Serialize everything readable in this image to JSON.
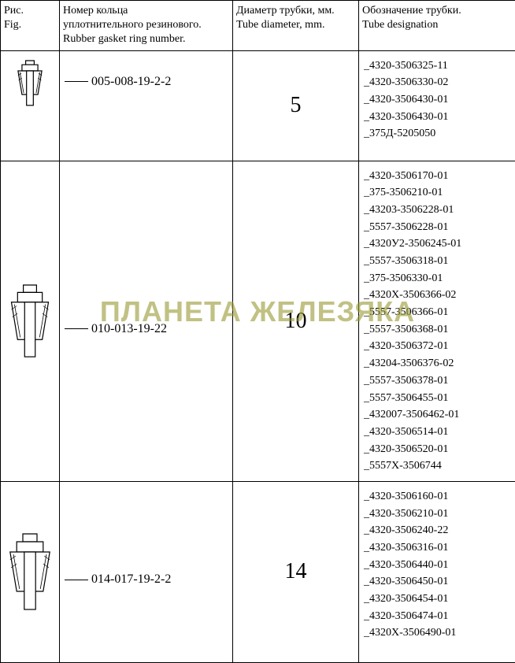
{
  "watermark": "ПЛАНЕТА ЖЕЛЕЗЯКА",
  "headers": {
    "fig": "Рис.\nFig.",
    "ring": "Номер кольца\nуплотнительного резинового.\nRubber gasket ring number.",
    "diam": "Диаметр трубки, мм.\nTube diameter, mm.",
    "desig": "Обозначение трубки.\nTube designation"
  },
  "rows": [
    {
      "ring_number": "005-008-19-2-2",
      "diameter": "5",
      "fig_size": "small",
      "designations": [
        "4320-3506325-11",
        "4320-3506330-02",
        "4320-3506430-01",
        "4320-3506430-01",
        "375Д-5205050"
      ]
    },
    {
      "ring_number": "010-013-19-22",
      "diameter": "10",
      "fig_size": "medium",
      "designations": [
        "4320-3506170-01",
        "375-3506210-01",
        "43203-3506228-01",
        "5557-3506228-01",
        "4320У2-3506245-01",
        "5557-3506318-01",
        "375-3506330-01",
        "4320Х-3506366-02",
        "5557-3506366-01",
        "5557-3506368-01",
        "4320-3506372-01",
        "43204-3506376-02",
        "5557-3506378-01",
        "5557-3506455-01",
        "432007-3506462-01",
        "4320-3506514-01",
        "4320-3506520-01",
        "5557Х-3506744"
      ]
    },
    {
      "ring_number": "014-017-19-2-2",
      "diameter": "14",
      "fig_size": "large",
      "designations": [
        "4320-3506160-01",
        "4320-3506210-01",
        "4320-3506240-22",
        "4320-3506316-01",
        "4320-3506440-01",
        "4320-3506450-01",
        "4320-3506454-01",
        "4320-3506474-01",
        "4320Х-3506490-01"
      ]
    }
  ],
  "styling": {
    "border_color": "#000000",
    "background": "#ffffff",
    "watermark_color": "#999933",
    "font_family": "Times New Roman",
    "header_fontsize": 14,
    "cell_fontsize": 14,
    "diameter_fontsize": 28,
    "ring_fontsize": 16
  }
}
